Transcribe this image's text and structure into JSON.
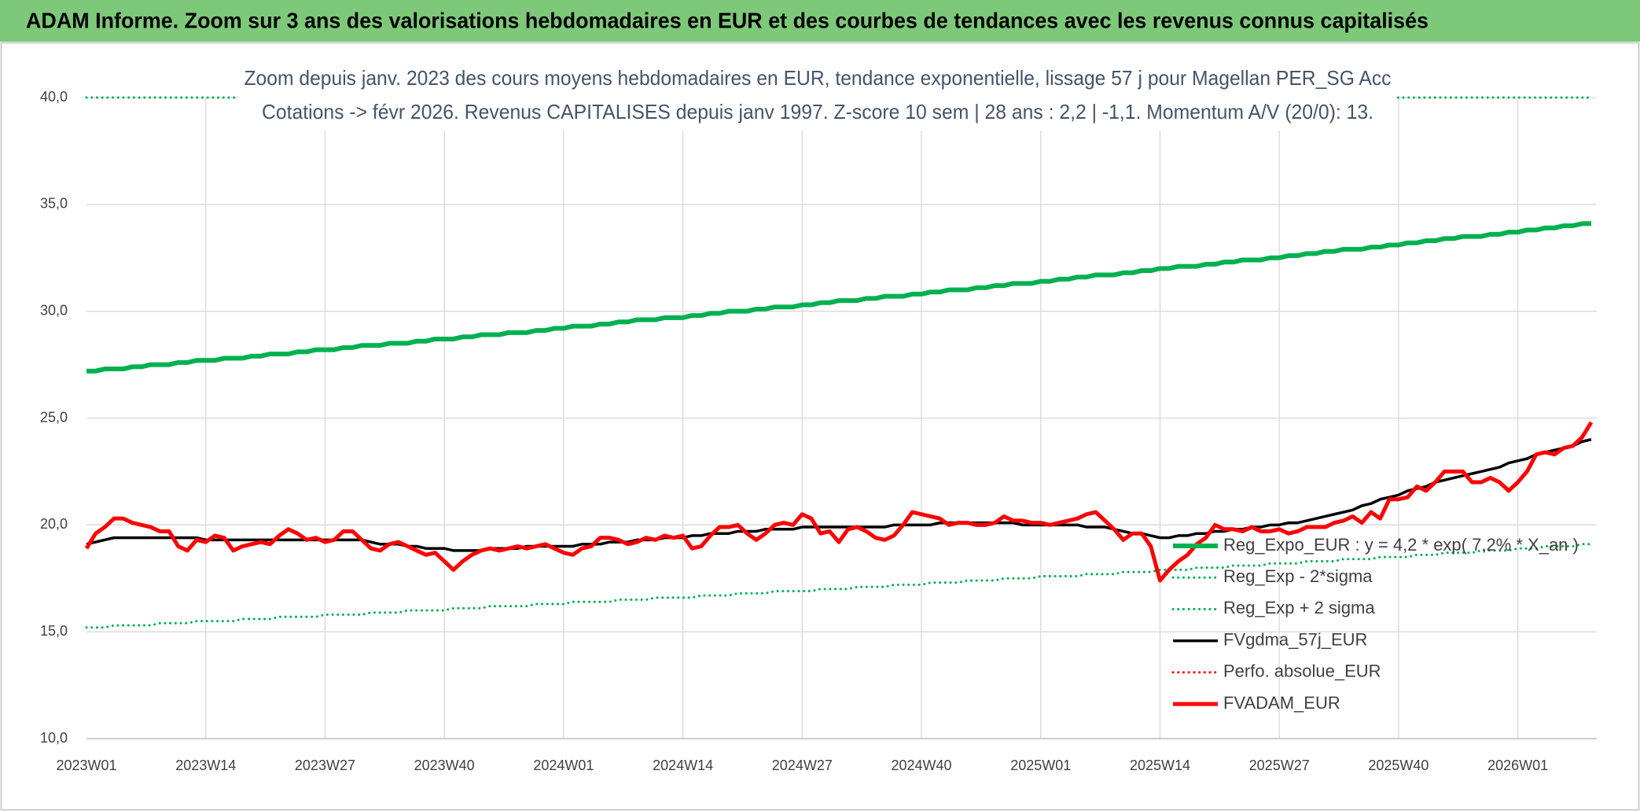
{
  "header": {
    "title": "ADAM Informe. Zoom sur 3 ans des valorisations hebdomadaires en EUR et des courbes de tendances avec les revenus connus capitalisés"
  },
  "chart_data": {
    "type": "line",
    "title": "Zoom depuis janv. 2023 des cours moyens hebdomadaires en EUR, tendance exponentielle, lissage 57 j pour Magellan PER_SG Acc",
    "subtitle": "Cotations -> févr 2026. Revenus CAPITALISES depuis janv 1997. Z-score 10 sem | 28 ans : 2,2 | -1,1. Momentum A/V (20/0): 13.",
    "ylim": [
      10,
      40
    ],
    "yticks": [
      {
        "value": 10,
        "label": "10,0"
      },
      {
        "value": 15,
        "label": "15,0"
      },
      {
        "value": 20,
        "label": "20,0"
      },
      {
        "value": 25,
        "label": "25,0"
      },
      {
        "value": 30,
        "label": "30,0"
      },
      {
        "value": 35,
        "label": "35,0"
      },
      {
        "value": 40,
        "label": "40,0"
      }
    ],
    "grid": true,
    "legend": "right",
    "categories": [
      "2023W01",
      null,
      null,
      null,
      null,
      null,
      null,
      null,
      null,
      null,
      null,
      null,
      null,
      "2023W14",
      null,
      null,
      null,
      null,
      null,
      null,
      null,
      null,
      null,
      null,
      null,
      null,
      "2023W27",
      null,
      null,
      null,
      null,
      null,
      null,
      null,
      null,
      null,
      null,
      null,
      null,
      "2023W40",
      null,
      null,
      null,
      null,
      null,
      null,
      null,
      null,
      null,
      null,
      null,
      null,
      "2024W01",
      null,
      null,
      null,
      null,
      null,
      null,
      null,
      null,
      null,
      null,
      null,
      null,
      "2024W14",
      null,
      null,
      null,
      null,
      null,
      null,
      null,
      null,
      null,
      null,
      null,
      null,
      "2024W27",
      null,
      null,
      null,
      null,
      null,
      null,
      null,
      null,
      null,
      null,
      null,
      null,
      "2024W40",
      null,
      null,
      null,
      null,
      null,
      null,
      null,
      null,
      null,
      null,
      null,
      null,
      "2025W01",
      null,
      null,
      null,
      null,
      null,
      null,
      null,
      null,
      null,
      null,
      null,
      null,
      "2025W14",
      null,
      null,
      null,
      null,
      null,
      null,
      null,
      null,
      null,
      null,
      null,
      null,
      "2025W27",
      null,
      null,
      null,
      null,
      null,
      null,
      null,
      null,
      null,
      null,
      null,
      null,
      "2025W40",
      null,
      null,
      null,
      null,
      null,
      null,
      null,
      null,
      null,
      null,
      null,
      null,
      "2026W01",
      null,
      null,
      null,
      null,
      null,
      null,
      null,
      null
    ],
    "series": [
      {
        "name": "Reg_Expo_EUR : y = 4,2 * exp( 7,2% * X_an )",
        "color": "#00b050",
        "style": "solid",
        "values": [
          27.2,
          27.2,
          27.3,
          27.3,
          27.3,
          27.4,
          27.4,
          27.5,
          27.5,
          27.5,
          27.6,
          27.6,
          27.7,
          27.7,
          27.7,
          27.8,
          27.8,
          27.8,
          27.9,
          27.9,
          28.0,
          28.0,
          28.0,
          28.1,
          28.1,
          28.2,
          28.2,
          28.2,
          28.3,
          28.3,
          28.4,
          28.4,
          28.4,
          28.5,
          28.5,
          28.5,
          28.6,
          28.6,
          28.7,
          28.7,
          28.7,
          28.8,
          28.8,
          28.9,
          28.9,
          28.9,
          29.0,
          29.0,
          29.0,
          29.1,
          29.1,
          29.2,
          29.2,
          29.3,
          29.3,
          29.3,
          29.4,
          29.4,
          29.5,
          29.5,
          29.6,
          29.6,
          29.6,
          29.7,
          29.7,
          29.7,
          29.8,
          29.8,
          29.9,
          29.9,
          30.0,
          30.0,
          30.0,
          30.1,
          30.1,
          30.2,
          30.2,
          30.2,
          30.3,
          30.3,
          30.4,
          30.4,
          30.5,
          30.5,
          30.5,
          30.6,
          30.6,
          30.7,
          30.7,
          30.7,
          30.8,
          30.8,
          30.9,
          30.9,
          31.0,
          31.0,
          31.0,
          31.1,
          31.1,
          31.2,
          31.2,
          31.3,
          31.3,
          31.3,
          31.4,
          31.4,
          31.5,
          31.5,
          31.6,
          31.6,
          31.7,
          31.7,
          31.7,
          31.8,
          31.8,
          31.9,
          31.9,
          32.0,
          32.0,
          32.1,
          32.1,
          32.1,
          32.2,
          32.2,
          32.3,
          32.3,
          32.4,
          32.4,
          32.4,
          32.5,
          32.5,
          32.6,
          32.6,
          32.7,
          32.7,
          32.8,
          32.8,
          32.9,
          32.9,
          32.9,
          33.0,
          33.0,
          33.1,
          33.1,
          33.2,
          33.2,
          33.3,
          33.3,
          33.4,
          33.4,
          33.5,
          33.5,
          33.5,
          33.6,
          33.6,
          33.7,
          33.7,
          33.8,
          33.8,
          33.9,
          33.9,
          34.0,
          34.0,
          34.1,
          34.1
        ]
      },
      {
        "name": "Reg_Exp - 2*sigma",
        "color": "#00b050",
        "style": "dotted",
        "values": [
          15.2,
          15.2,
          15.2,
          15.3,
          15.3,
          15.3,
          15.3,
          15.3,
          15.4,
          15.4,
          15.4,
          15.4,
          15.5,
          15.5,
          15.5,
          15.5,
          15.5,
          15.6,
          15.6,
          15.6,
          15.6,
          15.7,
          15.7,
          15.7,
          15.7,
          15.7,
          15.8,
          15.8,
          15.8,
          15.8,
          15.8,
          15.9,
          15.9,
          15.9,
          15.9,
          16.0,
          16.0,
          16.0,
          16.0,
          16.0,
          16.1,
          16.1,
          16.1,
          16.1,
          16.2,
          16.2,
          16.2,
          16.2,
          16.2,
          16.3,
          16.3,
          16.3,
          16.3,
          16.4,
          16.4,
          16.4,
          16.4,
          16.4,
          16.5,
          16.5,
          16.5,
          16.5,
          16.6,
          16.6,
          16.6,
          16.6,
          16.6,
          16.7,
          16.7,
          16.7,
          16.7,
          16.8,
          16.8,
          16.8,
          16.8,
          16.9,
          16.9,
          16.9,
          16.9,
          16.9,
          17.0,
          17.0,
          17.0,
          17.0,
          17.1,
          17.1,
          17.1,
          17.1,
          17.2,
          17.2,
          17.2,
          17.2,
          17.3,
          17.3,
          17.3,
          17.3,
          17.4,
          17.4,
          17.4,
          17.4,
          17.5,
          17.5,
          17.5,
          17.5,
          17.6,
          17.6,
          17.6,
          17.6,
          17.6,
          17.7,
          17.7,
          17.7,
          17.7,
          17.8,
          17.8,
          17.8,
          17.8,
          17.9,
          17.9,
          17.9,
          17.9,
          18.0,
          18.0,
          18.0,
          18.0,
          18.1,
          18.1,
          18.1,
          18.1,
          18.2,
          18.2,
          18.2,
          18.2,
          18.3,
          18.3,
          18.3,
          18.3,
          18.4,
          18.4,
          18.4,
          18.4,
          18.5,
          18.5,
          18.5,
          18.5,
          18.6,
          18.6,
          18.6,
          18.7,
          18.7,
          18.7,
          18.7,
          18.8,
          18.8,
          18.8,
          18.8,
          18.9,
          18.9,
          18.9,
          19.0,
          19.0,
          19.0,
          19.0,
          19.1,
          19.1
        ]
      },
      {
        "name": "Reg_Exp + 2 sigma",
        "color": "#00b050",
        "style": "dotted",
        "values": [
          40,
          40,
          40,
          40,
          40,
          40,
          40,
          40,
          40,
          40,
          40,
          40,
          40,
          40,
          40,
          40,
          40,
          40,
          40,
          40,
          40,
          40,
          40,
          40,
          40,
          40,
          40,
          40,
          40,
          40,
          40,
          40,
          40,
          40,
          40,
          40,
          40,
          40,
          40,
          40,
          40,
          40,
          40,
          40,
          40,
          40,
          40,
          40,
          40,
          40,
          40,
          40,
          40,
          40,
          40,
          40,
          40,
          40,
          40,
          40,
          40,
          40,
          40,
          40,
          40,
          40,
          40,
          40,
          40,
          40,
          40,
          40,
          40,
          40,
          40,
          40,
          40,
          40,
          40,
          40,
          40,
          40,
          40,
          40,
          40,
          40,
          40,
          40,
          40,
          40,
          40,
          40,
          40,
          40,
          40,
          40,
          40,
          40,
          40,
          40,
          40,
          40,
          40,
          40,
          40,
          40,
          40,
          40,
          40,
          40,
          40,
          40,
          40,
          40,
          40,
          40,
          40,
          40,
          40,
          40,
          40,
          40,
          40,
          40,
          40,
          40,
          40,
          40,
          40,
          40,
          40,
          40,
          40,
          40,
          40,
          40,
          40,
          40,
          40,
          40,
          40,
          40,
          40,
          40,
          40,
          40,
          40,
          40,
          40,
          40,
          40,
          40,
          40,
          40,
          40,
          40,
          40,
          40,
          40,
          40,
          40,
          40,
          40,
          40,
          40
        ]
      },
      {
        "name": "FVgdma_57j_EUR",
        "color": "#000000",
        "style": "solid",
        "values": [
          19.1,
          19.2,
          19.3,
          19.4,
          19.4,
          19.4,
          19.4,
          19.4,
          19.4,
          19.4,
          19.4,
          19.4,
          19.4,
          19.3,
          19.3,
          19.3,
          19.3,
          19.3,
          19.3,
          19.3,
          19.3,
          19.3,
          19.3,
          19.3,
          19.3,
          19.3,
          19.3,
          19.3,
          19.3,
          19.3,
          19.3,
          19.2,
          19.1,
          19.1,
          19.1,
          19.0,
          19.0,
          18.9,
          18.9,
          18.9,
          18.8,
          18.8,
          18.8,
          18.8,
          18.9,
          18.9,
          18.9,
          18.9,
          19.0,
          19.0,
          19.0,
          19.0,
          19.0,
          19.0,
          19.1,
          19.1,
          19.1,
          19.2,
          19.2,
          19.2,
          19.3,
          19.3,
          19.3,
          19.4,
          19.4,
          19.4,
          19.5,
          19.5,
          19.6,
          19.6,
          19.6,
          19.7,
          19.7,
          19.7,
          19.8,
          19.8,
          19.8,
          19.8,
          19.9,
          19.9,
          19.9,
          19.9,
          19.9,
          19.9,
          19.9,
          19.9,
          19.9,
          19.9,
          20.0,
          20.0,
          20.0,
          20.0,
          20.0,
          20.1,
          20.1,
          20.1,
          20.1,
          20.1,
          20.1,
          20.1,
          20.1,
          20.1,
          20.0,
          20.0,
          20.0,
          20.0,
          20.0,
          20.0,
          20.0,
          19.9,
          19.9,
          19.9,
          19.8,
          19.7,
          19.6,
          19.6,
          19.5,
          19.4,
          19.4,
          19.5,
          19.5,
          19.6,
          19.6,
          19.7,
          19.7,
          19.8,
          19.8,
          19.9,
          19.9,
          20.0,
          20.0,
          20.1,
          20.1,
          20.2,
          20.3,
          20.4,
          20.5,
          20.6,
          20.7,
          20.9,
          21.0,
          21.2,
          21.3,
          21.4,
          21.6,
          21.7,
          21.8,
          22.0,
          22.1,
          22.2,
          22.3,
          22.4,
          22.5,
          22.6,
          22.7,
          22.9,
          23.0,
          23.1,
          23.3,
          23.4,
          23.5,
          23.6,
          23.7,
          23.9,
          24.0
        ]
      },
      {
        "name": "Perfo. absolue_EUR",
        "color": "#ff0000",
        "style": "dotted"
      },
      {
        "name": "FVADAM_EUR",
        "color": "#ff0000",
        "style": "solid",
        "values": [
          18.9,
          19.6,
          19.9,
          20.3,
          20.3,
          20.1,
          20.0,
          19.9,
          19.7,
          19.7,
          19.0,
          18.8,
          19.3,
          19.2,
          19.5,
          19.4,
          18.8,
          19.0,
          19.1,
          19.2,
          19.1,
          19.5,
          19.8,
          19.6,
          19.3,
          19.4,
          19.2,
          19.3,
          19.7,
          19.7,
          19.3,
          18.9,
          18.8,
          19.1,
          19.2,
          19.0,
          18.8,
          18.6,
          18.7,
          18.3,
          17.9,
          18.3,
          18.6,
          18.8,
          18.9,
          18.8,
          18.9,
          19.0,
          18.9,
          19.0,
          19.1,
          18.9,
          18.7,
          18.6,
          18.9,
          19.0,
          19.4,
          19.4,
          19.3,
          19.1,
          19.2,
          19.4,
          19.3,
          19.5,
          19.4,
          19.5,
          18.9,
          19.0,
          19.5,
          19.9,
          19.9,
          20.0,
          19.6,
          19.3,
          19.6,
          20.0,
          20.1,
          20.0,
          20.5,
          20.3,
          19.6,
          19.7,
          19.2,
          19.8,
          19.9,
          19.7,
          19.4,
          19.3,
          19.5,
          20.0,
          20.6,
          20.5,
          20.4,
          20.3,
          20.0,
          20.1,
          20.1,
          20.0,
          20.0,
          20.1,
          20.4,
          20.2,
          20.2,
          20.1,
          20.1,
          20.0,
          20.1,
          20.2,
          20.3,
          20.5,
          20.6,
          20.2,
          19.8,
          19.3,
          19.6,
          19.6,
          19.0,
          17.4,
          17.9,
          18.3,
          18.6,
          19.1,
          19.4,
          20.0,
          19.8,
          19.8,
          19.7,
          19.9,
          19.7,
          19.7,
          19.8,
          19.6,
          19.7,
          19.9,
          19.9,
          19.9,
          20.1,
          20.2,
          20.4,
          20.1,
          20.6,
          20.3,
          21.2,
          21.2,
          21.3,
          21.8,
          21.6,
          22.0,
          22.5,
          22.5,
          22.5,
          22.0,
          22.0,
          22.2,
          22.0,
          21.6,
          22.0,
          22.5,
          23.3,
          23.4,
          23.3,
          23.6,
          23.7,
          24.1,
          24.8
        ]
      }
    ]
  }
}
